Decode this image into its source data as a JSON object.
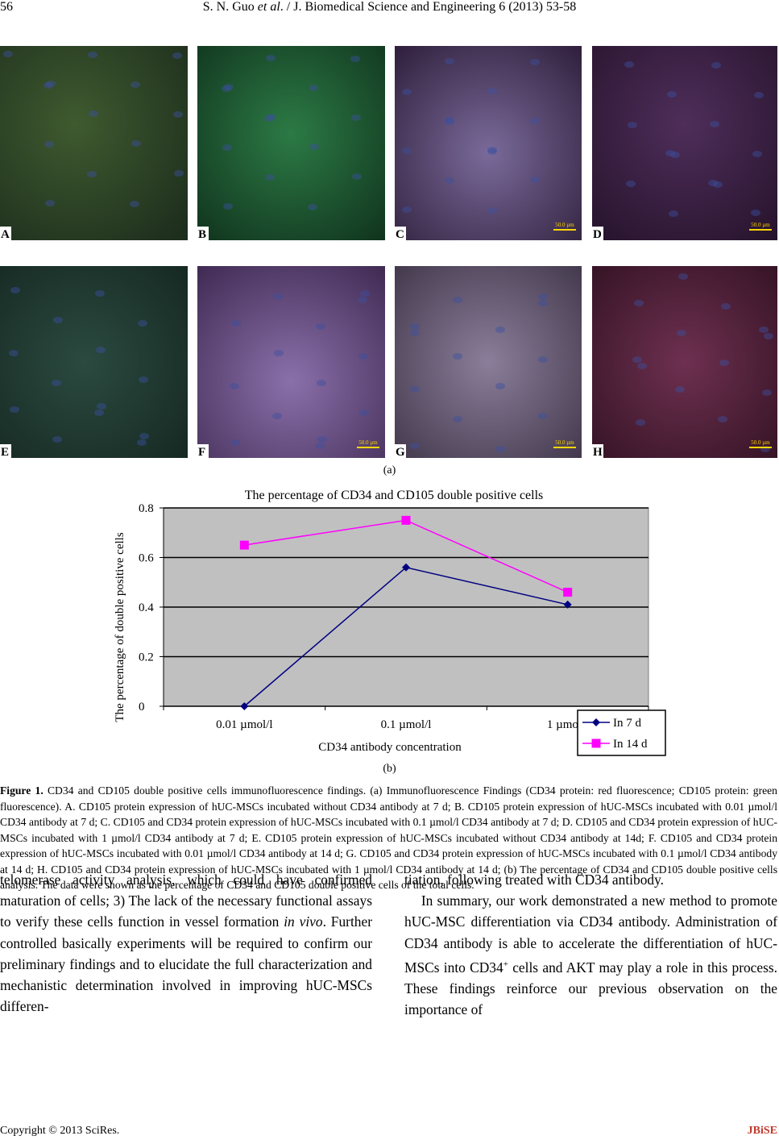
{
  "header": {
    "page": "56",
    "authors": "S. N. Guo ",
    "etal": "et al",
    "journal": ". / J. Biomedical Science and Engineering 6 (2013) 53-58"
  },
  "panels": [
    {
      "label": "A"
    },
    {
      "label": "B"
    },
    {
      "label": "C",
      "scale": "50.0 µm"
    },
    {
      "label": "D",
      "scale": "50.0 µm"
    },
    {
      "label": "E"
    },
    {
      "label": "F",
      "scale": "50.0 µm"
    },
    {
      "label": "G",
      "scale": "50.0 µm"
    },
    {
      "label": "H",
      "scale": "50.0 µm"
    }
  ],
  "panel_caption": "(a)",
  "chart_data": {
    "type": "line",
    "title": "The percentage of CD34 and CD105 double positive cells",
    "x_label": "CD34 antibody concentration",
    "y_label": "The percentage of double positive cells",
    "categories": [
      "0.01 µmol/l",
      "0.1 µmol/l",
      "1 µmol/l"
    ],
    "series": [
      {
        "name": "In 7 d",
        "color": "#000080",
        "marker": "diamond",
        "values": [
          0,
          0.56,
          0.41
        ]
      },
      {
        "name": "In 14 d",
        "color": "#ff00ff",
        "marker": "square",
        "values": [
          0.65,
          0.75,
          0.46
        ]
      }
    ],
    "ylim": [
      0,
      0.8
    ],
    "yticks": [
      0,
      0.2,
      0.4,
      0.6,
      0.8
    ],
    "grid": true,
    "legend": "right"
  },
  "chart_caption": "(b)",
  "figure_caption": {
    "label": "Figure 1.",
    "text": " CD34 and CD105 double positive cells immunofluorescence findings. (a) Immunofluorescence Findings (CD34 protein: red fluorescence; CD105 protein: green fluorescence). A. CD105 protein expression of hUC-MSCs incubated without CD34 antibody at 7 d; B. CD105 protein expression of hUC-MSCs incubated with 0.01 µmol/l CD34 antibody at 7 d; C. CD105 and CD34 protein expression of hUC-MSCs incubated with 0.1 µmol/l CD34 antibody at 7 d; D. CD105 and CD34 protein expression of hUC-MSCs incubated with 1 µmol/l CD34 antibody at 7 d; E. CD105 protein expression of hUC-MSCs incubated without CD34 antibody at 14d; F. CD105 and CD34 protein expression of hUC-MSCs incubated with 0.01 µmol/l CD34 antibody at 14 d; G. CD105 and CD34 protein expression of hUC-MSCs incubated with 0.1 µmol/l CD34 antibody at 14 d; H. CD105 and CD34 protein expression of hUC-MSCs incubated with 1 µmol/l CD34 antibody at 14 d; (b) The percentage of CD34 and CD105 double positive cells analysis. The data were shown as the percentage of CD34 and CD105 double positive cells of the total cells."
  },
  "body": {
    "left": [
      "telomerase activity analysis, which could have confirmed maturation of cells; 3) The lack of the necessary functional assays to verify these cells function in vessel formation ",
      "in vivo",
      ". Further controlled basically experiments will be required to confirm our preliminary findings and to elucidate the full characterization and mechanistic determination involved in improving hUC-MSCs differen-"
    ],
    "right_first": "tiation, following treated with CD34 antibody.",
    "right_second": [
      "In summary, our work demonstrated a new method to promote hUC-MSC differentiation via CD34 antibody. Administration of CD34 antibody is able to accelerate the differentiation of hUC-MSCs into CD34",
      "+",
      " cells and AKT may play a role in this process. These findings reinforce our previous observation on the importance of"
    ]
  },
  "footer": {
    "copyright": "Copyright © 2013 SciRes.",
    "journal": "JBiSE"
  }
}
